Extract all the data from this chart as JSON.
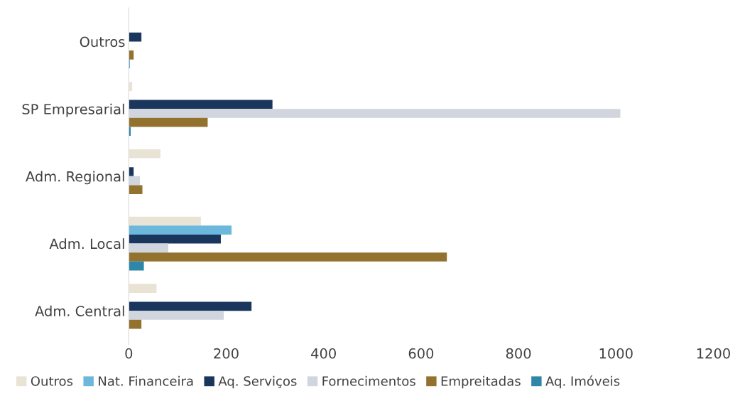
{
  "chart_data": {
    "type": "bar",
    "orientation": "horizontal",
    "categories": [
      "Outros",
      "SP Empresarial",
      "Adm. Regional",
      "Adm. Local",
      "Adm. Central"
    ],
    "series": [
      {
        "name": "Outros",
        "color": "#e8e3d5",
        "values": [
          0,
          7,
          65,
          148,
          57
        ]
      },
      {
        "name": "Nat. Financeira",
        "color": "#6cb8dc",
        "values": [
          0,
          0,
          0,
          211,
          0
        ]
      },
      {
        "name": "Aq. Serviços",
        "color": "#1b365d",
        "values": [
          26,
          295,
          10,
          189,
          252
        ]
      },
      {
        "name": "Fornecimentos",
        "color": "#d0d5de",
        "values": [
          1,
          1009,
          23,
          81,
          195
        ]
      },
      {
        "name": "Empreitadas",
        "color": "#93722f",
        "values": [
          10,
          162,
          28,
          653,
          26
        ]
      },
      {
        "name": "Aq. Imóveis",
        "color": "#2e86a8",
        "values": [
          2,
          4,
          0,
          31,
          0
        ]
      }
    ],
    "xlim": [
      0,
      1200
    ],
    "xticks": [
      0,
      200,
      400,
      600,
      800,
      1000,
      1200
    ],
    "grid": false,
    "legend": "bottom"
  }
}
